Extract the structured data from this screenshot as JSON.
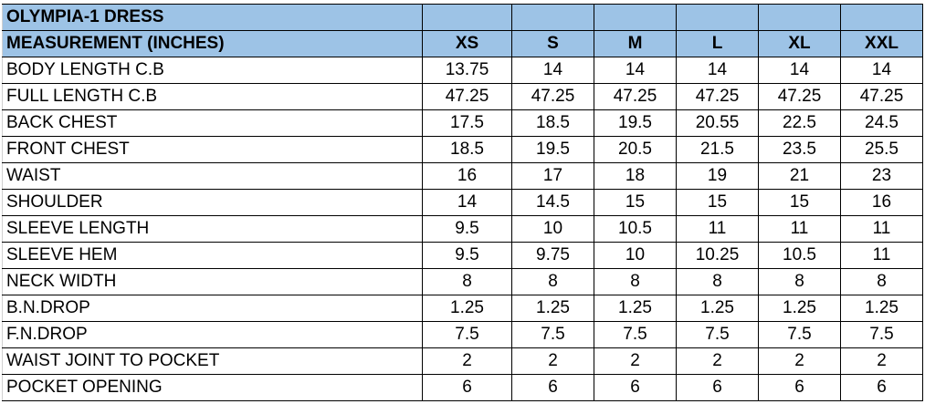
{
  "title": "OLYMPIA-1 DRESS",
  "header_label": "MEASUREMENT (INCHES)",
  "sizes": [
    "XS",
    "S",
    "M",
    "L",
    "XL",
    "XXL"
  ],
  "header_fill": "#9dc3e6",
  "rows": [
    {
      "label": "BODY LENGTH C.B",
      "values": [
        "13.75",
        "14",
        "14",
        "14",
        "14",
        "14"
      ]
    },
    {
      "label": "FULL LENGTH C.B",
      "values": [
        "47.25",
        "47.25",
        "47.25",
        "47.25",
        "47.25",
        "47.25"
      ]
    },
    {
      "label": "BACK CHEST",
      "values": [
        "17.5",
        "18.5",
        "19.5",
        "20.55",
        "22.5",
        "24.5"
      ]
    },
    {
      "label": "FRONT CHEST",
      "values": [
        "18.5",
        "19.5",
        "20.5",
        "21.5",
        "23.5",
        "25.5"
      ]
    },
    {
      "label": "WAIST",
      "values": [
        "16",
        "17",
        "18",
        "19",
        "21",
        "23"
      ]
    },
    {
      "label": "SHOULDER",
      "values": [
        "14",
        "14.5",
        "15",
        "15",
        "15",
        "16"
      ]
    },
    {
      "label": "SLEEVE LENGTH",
      "values": [
        "9.5",
        "10",
        "10.5",
        "11",
        "11",
        "11"
      ]
    },
    {
      "label": "SLEEVE HEM",
      "values": [
        "9.5",
        "9.75",
        "10",
        "10.25",
        "10.5",
        "11"
      ]
    },
    {
      "label": "NECK WIDTH",
      "values": [
        "8",
        "8",
        "8",
        "8",
        "8",
        "8"
      ]
    },
    {
      "label": "B.N.DROP",
      "values": [
        "1.25",
        "1.25",
        "1.25",
        "1.25",
        "1.25",
        "1.25"
      ]
    },
    {
      "label": "F.N.DROP",
      "values": [
        "7.5",
        "7.5",
        "7.5",
        "7.5",
        "7.5",
        "7.5"
      ]
    },
    {
      "label": "WAIST JOINT TO POCKET",
      "values": [
        "2",
        "2",
        "2",
        "2",
        "2",
        "2"
      ]
    },
    {
      "label": "POCKET OPENING",
      "values": [
        "6",
        "6",
        "6",
        "6",
        "6",
        "6"
      ]
    }
  ]
}
